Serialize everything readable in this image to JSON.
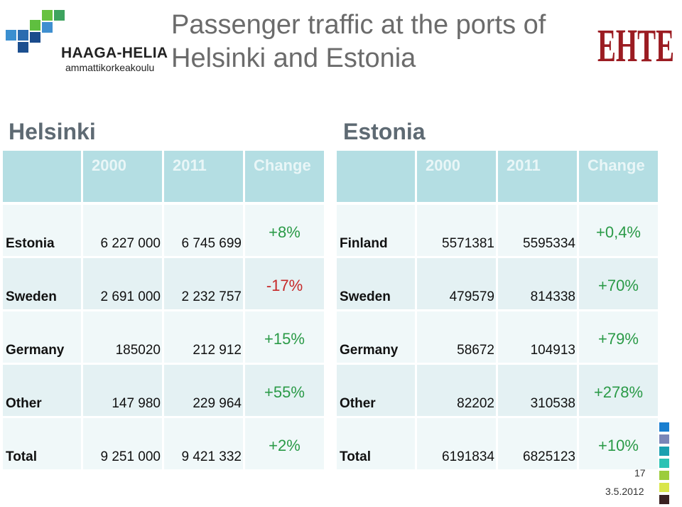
{
  "logo": {
    "name": "HAAGA-HELIA",
    "sub": "ammattikorkeakoulu",
    "square_colors": [
      "#3a8fd0",
      "#2a6cb0",
      "#5fbf3f",
      "#1c4f8f",
      "#67c23f",
      "#3f8fd0",
      "#1b4b8c",
      "#3ea35f"
    ]
  },
  "title": "Passenger traffic at the ports of Helsinki and Estonia",
  "right_logo": {
    "text": "EHTE",
    "color": "#9b1c22"
  },
  "helsinki": {
    "heading": "Helsinki",
    "headers": [
      "",
      "2000",
      "2011",
      "Change"
    ],
    "rows": [
      {
        "label": "Estonia",
        "y2000": "6 227 000",
        "y2011": "6 745 699",
        "change": "+8%",
        "change_color": "#2a9a47"
      },
      {
        "label": "Sweden",
        "y2000": "2 691 000",
        "y2011": "2 232 757",
        "change": "-17%",
        "change_color": "#c62828"
      },
      {
        "label": "Germany",
        "y2000": "185020",
        "y2011": "212 912",
        "change": "+15%",
        "change_color": "#2a9a47"
      },
      {
        "label": "Other",
        "y2000": "147 980",
        "y2011": "229 964",
        "change": "+55%",
        "change_color": "#2a9a47"
      },
      {
        "label": "Total",
        "y2000": "9 251 000",
        "y2011": "9 421 332",
        "change": "+2%",
        "change_color": "#2a9a47"
      }
    ]
  },
  "estonia": {
    "heading": "Estonia",
    "headers": [
      "",
      "2000",
      "2011",
      "Change"
    ],
    "rows": [
      {
        "label": "Finland",
        "y2000": "5571381",
        "y2011": "5595334",
        "change": "+0,4%",
        "change_color": "#2a9a47"
      },
      {
        "label": "Sweden",
        "y2000": "479579",
        "y2011": "814338",
        "change": "+70%",
        "change_color": "#2a9a47"
      },
      {
        "label": "Germany",
        "y2000": "58672",
        "y2011": "104913",
        "change": "+79%",
        "change_color": "#2a9a47"
      },
      {
        "label": "Other",
        "y2000": "82202",
        "y2011": "310538",
        "change": "+278%",
        "change_color": "#2a9a47"
      },
      {
        "label": "Total",
        "y2000": "6191834",
        "y2011": "6825123",
        "change": "+10%",
        "change_color": "#2a9a47"
      }
    ]
  },
  "footer": {
    "page_number": "17",
    "date": "3.5.2012",
    "stack_colors": [
      "#1a7fd0",
      "#7a86b8",
      "#1aa0b0",
      "#2cc3b4",
      "#9ccc3c",
      "#d9e64a",
      "#3a2222"
    ]
  }
}
